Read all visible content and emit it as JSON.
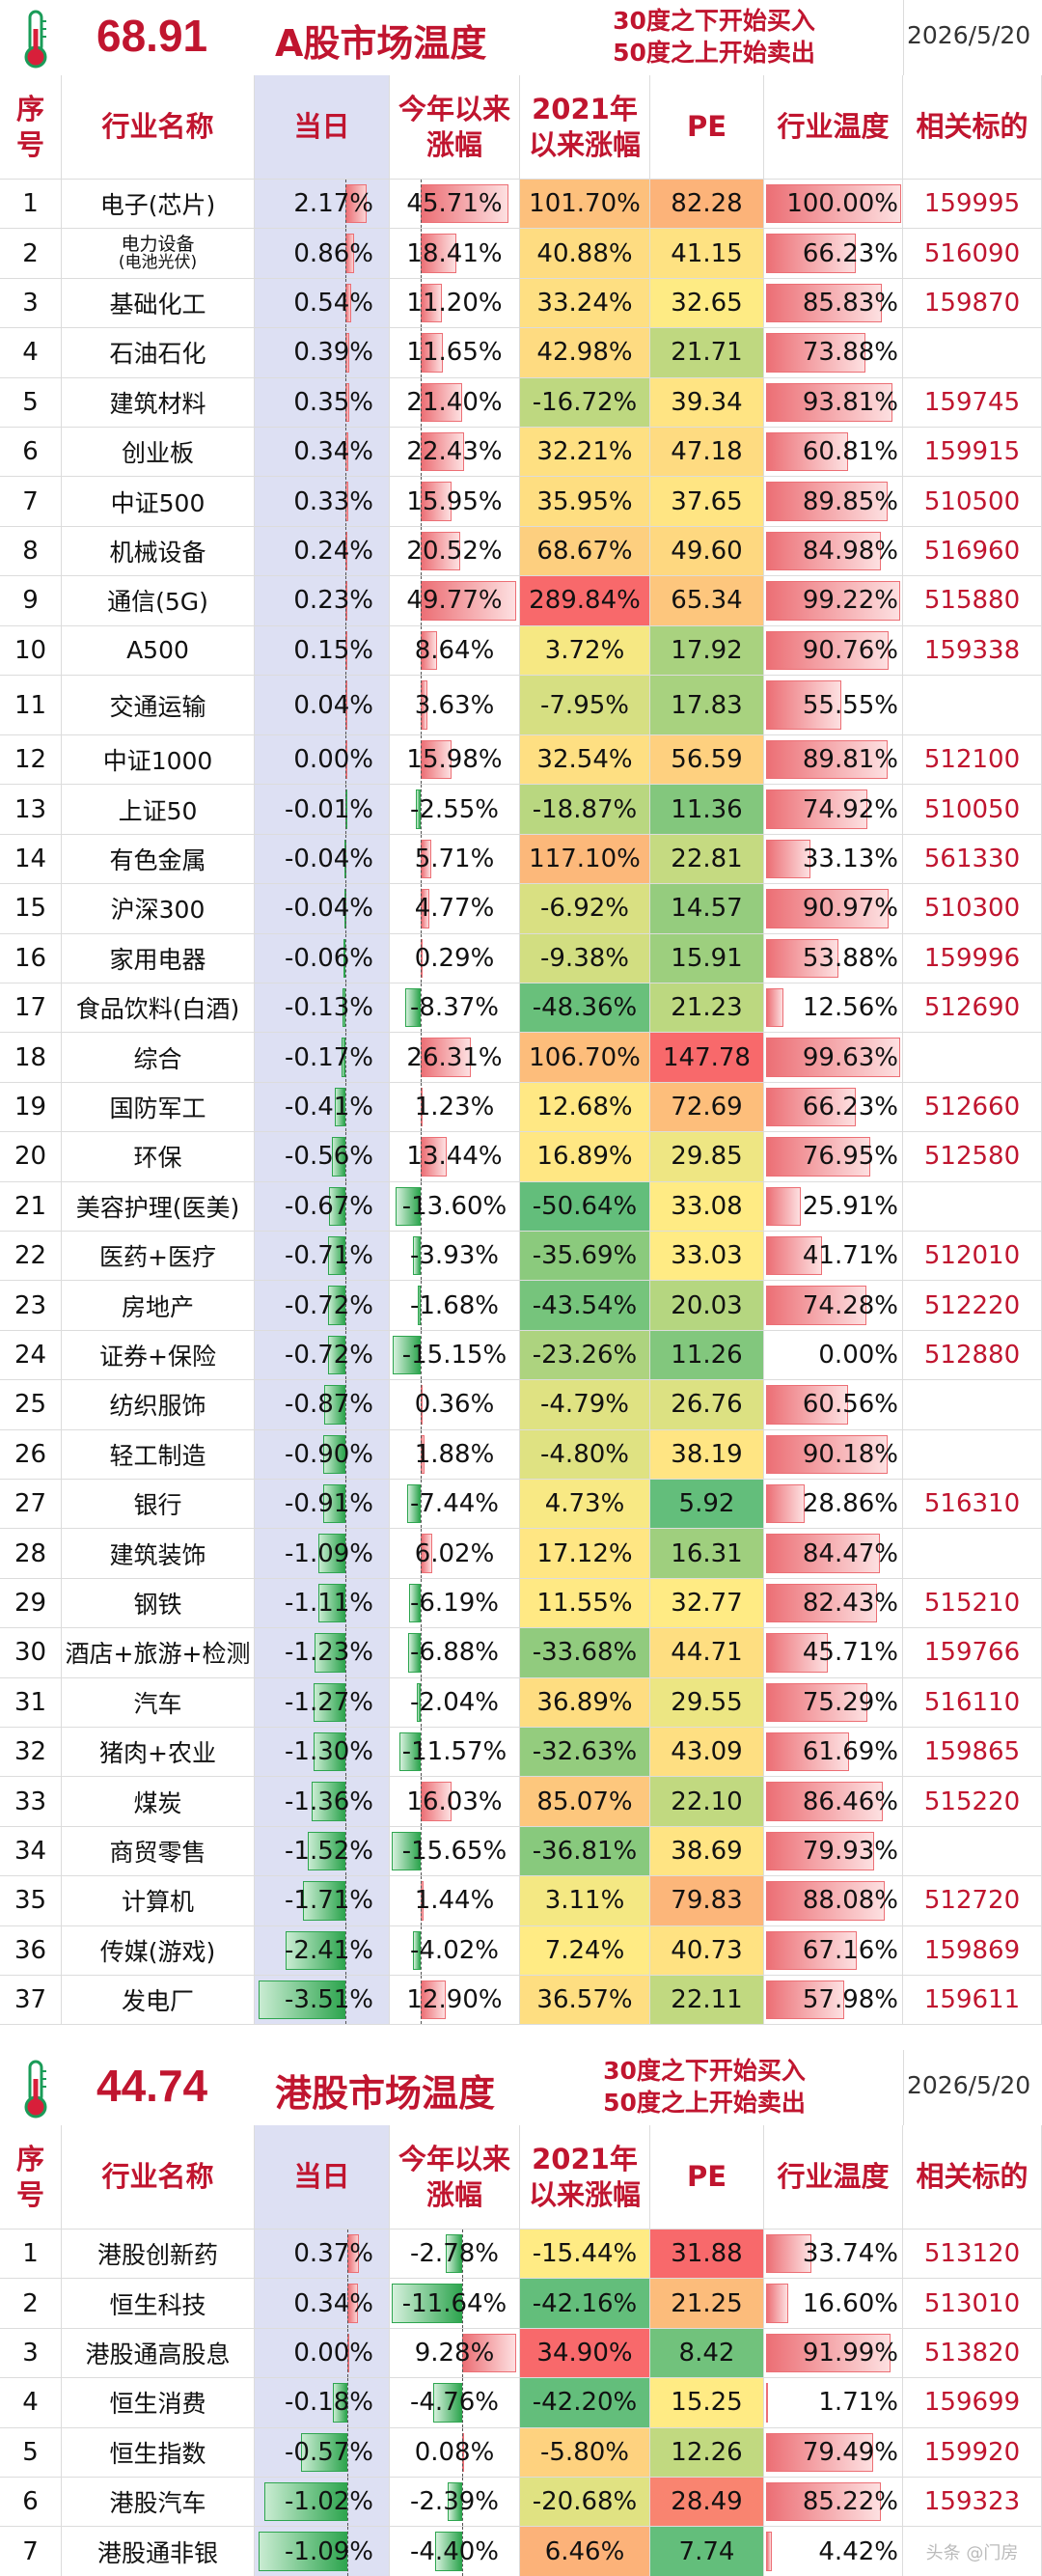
{
  "sections": [
    {
      "key": "a",
      "temperature": "68.91",
      "title": "A股市场温度",
      "rule1": "30度之下开始买入",
      "rule2": "50度之上开始卖出",
      "date": "2026/5/20",
      "headers": {
        "seq": "序\n号",
        "name": "行业名称",
        "day": "当日",
        "ytd": "今年以来\n涨幅",
        "since2021": "2021年\n以来涨幅",
        "pe": "PE",
        "temp": "行业温度",
        "code": "相关标的"
      },
      "rows": [
        {
          "seq": "1",
          "name": "电子(芯片)",
          "day": "2.17%",
          "ytd": "45.71%",
          "since2021": "101.70%",
          "pe": "82.28",
          "temp": "100.00%",
          "code": "159995"
        },
        {
          "seq": "2",
          "name": "电力设备",
          "name_sub": "(电池光伏)",
          "day": "0.86%",
          "ytd": "18.41%",
          "since2021": "40.88%",
          "pe": "41.15",
          "temp": "66.23%",
          "code": "516090"
        },
        {
          "seq": "3",
          "name": "基础化工",
          "day": "0.54%",
          "ytd": "11.20%",
          "since2021": "33.24%",
          "pe": "32.65",
          "temp": "85.83%",
          "code": "159870"
        },
        {
          "seq": "4",
          "name": "石油石化",
          "day": "0.39%",
          "ytd": "11.65%",
          "since2021": "42.98%",
          "pe": "21.71",
          "temp": "73.88%",
          "code": ""
        },
        {
          "seq": "5",
          "name": "建筑材料",
          "day": "0.35%",
          "ytd": "21.40%",
          "since2021": "-16.72%",
          "pe": "39.34",
          "temp": "93.81%",
          "code": "159745"
        },
        {
          "seq": "6",
          "name": "创业板",
          "day": "0.34%",
          "ytd": "22.43%",
          "since2021": "32.21%",
          "pe": "47.18",
          "temp": "60.81%",
          "code": "159915"
        },
        {
          "seq": "7",
          "name": "中证500",
          "day": "0.33%",
          "ytd": "15.95%",
          "since2021": "35.95%",
          "pe": "37.65",
          "temp": "89.85%",
          "code": "510500"
        },
        {
          "seq": "8",
          "name": "机械设备",
          "day": "0.24%",
          "ytd": "20.52%",
          "since2021": "68.67%",
          "pe": "49.60",
          "temp": "84.98%",
          "code": "516960"
        },
        {
          "seq": "9",
          "name": "通信(5G)",
          "day": "0.23%",
          "ytd": "49.77%",
          "since2021": "289.84%",
          "pe": "65.34",
          "temp": "99.22%",
          "code": "515880"
        },
        {
          "seq": "10",
          "name": "A500",
          "day": "0.15%",
          "ytd": "8.64%",
          "since2021": "3.72%",
          "pe": "17.92",
          "temp": "90.76%",
          "code": "159338"
        },
        {
          "seq": "11",
          "name": "交通运输",
          "day": "0.04%",
          "ytd": "3.63%",
          "since2021": "-7.95%",
          "pe": "17.83",
          "temp": "55.55%",
          "code": "",
          "tall": true
        },
        {
          "seq": "12",
          "name": "中证1000",
          "day": "0.00%",
          "ytd": "15.98%",
          "since2021": "32.54%",
          "pe": "56.59",
          "temp": "89.81%",
          "code": "512100"
        },
        {
          "seq": "13",
          "name": "上证50",
          "day": "-0.01%",
          "ytd": "-2.55%",
          "since2021": "-18.87%",
          "pe": "11.36",
          "temp": "74.92%",
          "code": "510050"
        },
        {
          "seq": "14",
          "name": "有色金属",
          "day": "-0.04%",
          "ytd": "5.71%",
          "since2021": "117.10%",
          "pe": "22.81",
          "temp": "33.13%",
          "code": "561330"
        },
        {
          "seq": "15",
          "name": "沪深300",
          "day": "-0.04%",
          "ytd": "4.77%",
          "since2021": "-6.92%",
          "pe": "14.57",
          "temp": "90.97%",
          "code": "510300"
        },
        {
          "seq": "16",
          "name": "家用电器",
          "day": "-0.06%",
          "ytd": "0.29%",
          "since2021": "-9.38%",
          "pe": "15.91",
          "temp": "53.88%",
          "code": "159996"
        },
        {
          "seq": "17",
          "name": "食品饮料(白酒)",
          "day": "-0.13%",
          "ytd": "-8.37%",
          "since2021": "-48.36%",
          "pe": "21.23",
          "temp": "12.56%",
          "code": "512690"
        },
        {
          "seq": "18",
          "name": "综合",
          "day": "-0.17%",
          "ytd": "26.31%",
          "since2021": "106.70%",
          "pe": "147.78",
          "temp": "99.63%",
          "code": ""
        },
        {
          "seq": "19",
          "name": "国防军工",
          "day": "-0.41%",
          "ytd": "1.23%",
          "since2021": "12.68%",
          "pe": "72.69",
          "temp": "66.23%",
          "code": "512660"
        },
        {
          "seq": "20",
          "name": "环保",
          "day": "-0.56%",
          "ytd": "13.44%",
          "since2021": "16.89%",
          "pe": "29.85",
          "temp": "76.95%",
          "code": "512580"
        },
        {
          "seq": "21",
          "name": "美容护理(医美)",
          "day": "-0.67%",
          "ytd": "-13.60%",
          "since2021": "-50.64%",
          "pe": "33.08",
          "temp": "25.91%",
          "code": ""
        },
        {
          "seq": "22",
          "name": "医药+医疗",
          "day": "-0.71%",
          "ytd": "-3.93%",
          "since2021": "-35.69%",
          "pe": "33.03",
          "temp": "41.71%",
          "code": "512010"
        },
        {
          "seq": "23",
          "name": "房地产",
          "day": "-0.72%",
          "ytd": "-1.68%",
          "since2021": "-43.54%",
          "pe": "20.03",
          "temp": "74.28%",
          "code": "512220"
        },
        {
          "seq": "24",
          "name": "证券+保险",
          "day": "-0.72%",
          "ytd": "-15.15%",
          "since2021": "-23.26%",
          "pe": "11.26",
          "temp": "0.00%",
          "code": "512880"
        },
        {
          "seq": "25",
          "name": "纺织服饰",
          "day": "-0.87%",
          "ytd": "0.36%",
          "since2021": "-4.79%",
          "pe": "26.76",
          "temp": "60.56%",
          "code": ""
        },
        {
          "seq": "26",
          "name": "轻工制造",
          "day": "-0.90%",
          "ytd": "1.88%",
          "since2021": "-4.80%",
          "pe": "38.19",
          "temp": "90.18%",
          "code": ""
        },
        {
          "seq": "27",
          "name": "银行",
          "day": "-0.91%",
          "ytd": "-7.44%",
          "since2021": "4.73%",
          "pe": "5.92",
          "temp": "28.86%",
          "code": "516310"
        },
        {
          "seq": "28",
          "name": "建筑装饰",
          "day": "-1.09%",
          "ytd": "6.02%",
          "since2021": "17.12%",
          "pe": "16.31",
          "temp": "84.47%",
          "code": ""
        },
        {
          "seq": "29",
          "name": "钢铁",
          "day": "-1.11%",
          "ytd": "-6.19%",
          "since2021": "11.55%",
          "pe": "32.77",
          "temp": "82.43%",
          "code": "515210"
        },
        {
          "seq": "30",
          "name": "酒店+旅游+检测",
          "day": "-1.23%",
          "ytd": "-6.88%",
          "since2021": "-33.68%",
          "pe": "44.71",
          "temp": "45.71%",
          "code": "159766"
        },
        {
          "seq": "31",
          "name": "汽车",
          "day": "-1.27%",
          "ytd": "-2.04%",
          "since2021": "36.89%",
          "pe": "29.55",
          "temp": "75.29%",
          "code": "516110"
        },
        {
          "seq": "32",
          "name": "猪肉+农业",
          "day": "-1.30%",
          "ytd": "-11.57%",
          "since2021": "-32.63%",
          "pe": "43.09",
          "temp": "61.69%",
          "code": "159865"
        },
        {
          "seq": "33",
          "name": "煤炭",
          "day": "-1.36%",
          "ytd": "16.03%",
          "since2021": "85.07%",
          "pe": "22.10",
          "temp": "86.46%",
          "code": "515220"
        },
        {
          "seq": "34",
          "name": "商贸零售",
          "day": "-1.52%",
          "ytd": "-15.65%",
          "since2021": "-36.81%",
          "pe": "38.69",
          "temp": "79.93%",
          "code": ""
        },
        {
          "seq": "35",
          "name": "计算机",
          "day": "-1.71%",
          "ytd": "1.44%",
          "since2021": "3.11%",
          "pe": "79.83",
          "temp": "88.08%",
          "code": "512720"
        },
        {
          "seq": "36",
          "name": "传媒(游戏)",
          "day": "-2.41%",
          "ytd": "-4.02%",
          "since2021": "7.24%",
          "pe": "40.73",
          "temp": "67.16%",
          "code": "159869"
        },
        {
          "seq": "37",
          "name": "发电厂",
          "day": "-3.51%",
          "ytd": "12.90%",
          "since2021": "36.57%",
          "pe": "22.11",
          "temp": "57.98%",
          "code": "159611"
        }
      ]
    },
    {
      "key": "h",
      "temperature": "44.74",
      "title": "港股市场温度",
      "rule1": "30度之下开始买入",
      "rule2": "50度之上开始卖出",
      "date": "2026/5/20",
      "headers": {
        "seq": "序\n号",
        "name": "行业名称",
        "day": "当日",
        "ytd": "今年以来\n涨幅",
        "since2021": "2021年\n以来涨幅",
        "pe": "PE",
        "temp": "行业温度",
        "code": "相关标的"
      },
      "rows": [
        {
          "seq": "1",
          "name": "港股创新药",
          "day": "0.37%",
          "ytd": "-2.78%",
          "since2021": "-15.44%",
          "pe": "31.88",
          "temp": "33.74%",
          "code": "513120"
        },
        {
          "seq": "2",
          "name": "恒生科技",
          "day": "0.34%",
          "ytd": "-11.64%",
          "since2021": "-42.16%",
          "pe": "21.25",
          "temp": "16.60%",
          "code": "513010"
        },
        {
          "seq": "3",
          "name": "港股通高股息",
          "day": "0.00%",
          "ytd": "9.28%",
          "since2021": "34.90%",
          "pe": "8.42",
          "temp": "91.99%",
          "code": "513820"
        },
        {
          "seq": "4",
          "name": "恒生消费",
          "day": "-0.18%",
          "ytd": "-4.76%",
          "since2021": "-42.20%",
          "pe": "15.25",
          "temp": "1.71%",
          "code": "159699"
        },
        {
          "seq": "5",
          "name": "恒生指数",
          "day": "-0.57%",
          "ytd": "0.08%",
          "since2021": "-5.80%",
          "pe": "12.26",
          "temp": "79.49%",
          "code": "159920"
        },
        {
          "seq": "6",
          "name": "港股汽车",
          "day": "-1.02%",
          "ytd": "-2.39%",
          "since2021": "-20.68%",
          "pe": "28.49",
          "temp": "85.22%",
          "code": "159323"
        },
        {
          "seq": "7",
          "name": "港股通非银",
          "day": "-1.09%",
          "ytd": "-4.40%",
          "since2021": "6.46%",
          "pe": "7.74",
          "temp": "4.42%",
          "code": "",
          "bottom_logo": "头条 @门房"
        }
      ]
    }
  ],
  "colors": {
    "accent": "#c0152f",
    "dayBg": "#dde0f3",
    "posBar": "#ec6f75",
    "negBar": "#2ea54f",
    "green": "#63be7b",
    "yellow": "#ffeb84",
    "red": "#f8696b"
  }
}
